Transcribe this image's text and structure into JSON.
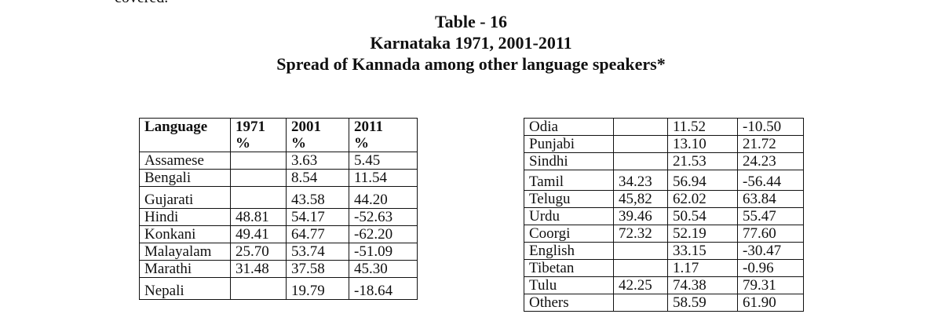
{
  "fragment": "covered.",
  "title_lines": [
    "Table - 16",
    "Karnataka 1971, 2001-2011",
    "Spread of Kannada among other language speakers*"
  ],
  "table_left": {
    "headers": [
      [
        "Language",
        ""
      ],
      [
        "1971",
        "%"
      ],
      [
        "2001",
        "%"
      ],
      [
        "2011",
        "%"
      ]
    ],
    "rows": [
      [
        "Assamese",
        "",
        "3.63",
        "5.45"
      ],
      [
        "Bengali",
        "",
        "8.54",
        "11.54"
      ],
      [
        "Gujarati",
        "",
        "43.58",
        "44.20"
      ],
      [
        "Hindi",
        "48.81",
        "54.17",
        "-52.63"
      ],
      [
        "Konkani",
        "49.41",
        "64.77",
        "-62.20"
      ],
      [
        "Malayalam",
        "25.70",
        "53.74",
        "-51.09"
      ],
      [
        "Marathi",
        "31.48",
        "37.58",
        "45.30"
      ],
      [
        "Nepali",
        "",
        "19.79",
        "-18.64"
      ]
    ]
  },
  "table_right": {
    "rows": [
      [
        "Odia",
        "",
        "11.52",
        "-10.50"
      ],
      [
        "Punjabi",
        "",
        "13.10",
        "21.72"
      ],
      [
        "Sindhi",
        "",
        "21.53",
        "24.23"
      ],
      [
        "Tamil",
        "34.23",
        "56.94",
        "-56.44"
      ],
      [
        "Telugu",
        "45,82",
        "62.02",
        "63.84"
      ],
      [
        "Urdu",
        "39.46",
        "50.54",
        "55.47"
      ],
      [
        "Coorgi",
        "72.32",
        "52.19",
        "77.60"
      ],
      [
        "English",
        "",
        "33.15",
        "-30.47"
      ],
      [
        "Tibetan",
        "",
        "1.17",
        "-0.96"
      ],
      [
        "Tulu",
        "42.25",
        "74.38",
        "79.31"
      ],
      [
        "Others",
        "",
        "58.59",
        "61.90"
      ]
    ]
  }
}
